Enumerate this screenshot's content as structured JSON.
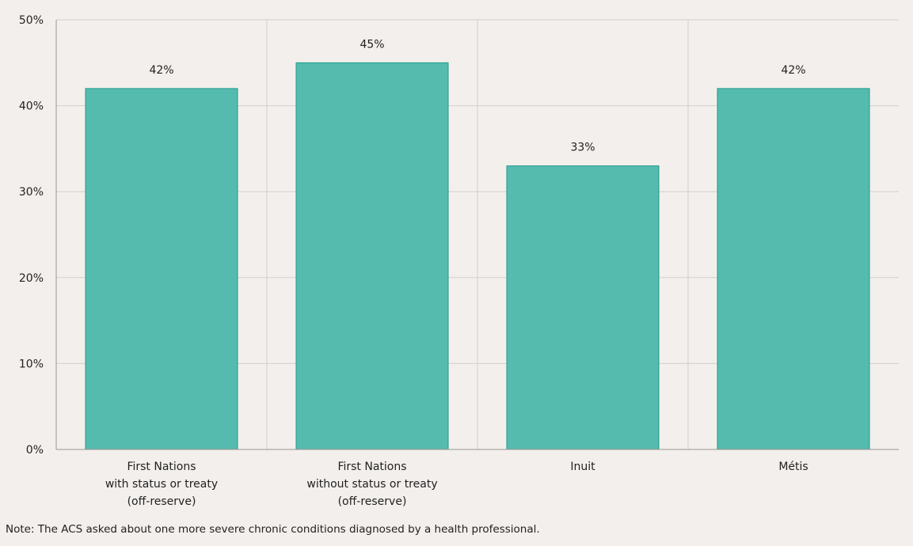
{
  "chart_data": {
    "type": "bar",
    "categories": [
      [
        "First Nations",
        "with status or treaty",
        "(off-reserve)"
      ],
      [
        "First Nations",
        "without status or treaty",
        "(off-reserve)"
      ],
      [
        "Inuit"
      ],
      [
        "Métis"
      ]
    ],
    "values": [
      42,
      45,
      33,
      42
    ],
    "data_labels": [
      "42%",
      "45%",
      "33%",
      "42%"
    ],
    "ylim": [
      0,
      50
    ],
    "yticks": [
      0,
      10,
      20,
      30,
      40,
      50
    ],
    "ytick_labels": [
      "0%",
      "10%",
      "20%",
      "30%",
      "40%",
      "50%"
    ],
    "title": "",
    "xlabel": "",
    "ylabel": "",
    "grid": true,
    "colors": {
      "bar_fill": "#56bbaf",
      "bar_stroke": "#1f9a8d",
      "grid": "#d4cfcb",
      "axis": "#9a9591",
      "background": "#f3efec"
    }
  },
  "note": "Note: The ACS asked about one more severe chronic conditions diagnosed by a health professional."
}
